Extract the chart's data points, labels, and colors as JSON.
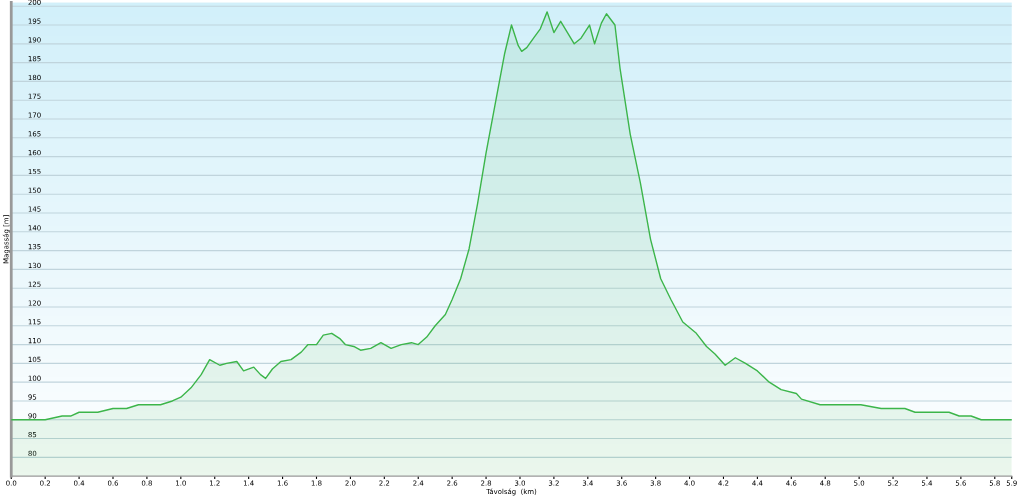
{
  "chart_data": {
    "type": "area",
    "xlabel": "Távolság  (km)",
    "ylabel": "Magasság [m]",
    "xlim": [
      0,
      5.9
    ],
    "ylim": [
      75,
      201
    ],
    "xticks": [
      {
        "value": 0,
        "label": "0.0"
      },
      0.2,
      0.4,
      0.6,
      0.8,
      {
        "value": 1,
        "label": "1.0"
      },
      1.2,
      1.4,
      1.6,
      1.8,
      {
        "value": 2,
        "label": "2.0"
      },
      2.2,
      2.4,
      2.6,
      2.8,
      {
        "value": 3,
        "label": "3.0"
      },
      3.2,
      3.4,
      3.6,
      3.8,
      {
        "value": 4,
        "label": "4.0"
      },
      4.2,
      4.4,
      4.6,
      4.8,
      {
        "value": 5,
        "label": "5.0"
      },
      5.2,
      5.4,
      5.6,
      5.8,
      5.9
    ],
    "yticks": [
      80,
      85,
      90,
      95,
      100,
      105,
      110,
      115,
      120,
      125,
      130,
      135,
      140,
      145,
      150,
      155,
      160,
      165,
      170,
      175,
      180,
      185,
      190,
      195,
      200
    ],
    "grid": "y",
    "legend": false,
    "series": [
      {
        "color": "#3cb54a",
        "x": [
          0,
          0.2,
          0.3,
          0.35,
          0.4,
          0.51,
          0.6,
          0.68,
          0.75,
          0.88,
          0.95,
          1.0,
          1.06,
          1.12,
          1.17,
          1.23,
          1.27,
          1.33,
          1.37,
          1.43,
          1.47,
          1.5,
          1.54,
          1.59,
          1.65,
          1.71,
          1.75,
          1.8,
          1.84,
          1.89,
          1.94,
          1.97,
          2.02,
          2.06,
          2.12,
          2.18,
          2.24,
          2.3,
          2.36,
          2.4,
          2.45,
          2.5,
          2.56,
          2.6,
          2.65,
          2.7,
          2.75,
          2.8,
          2.86,
          2.91,
          2.95,
          2.99,
          3.01,
          3.04,
          3.08,
          3.12,
          3.16,
          3.2,
          3.24,
          3.28,
          3.32,
          3.36,
          3.41,
          3.44,
          3.48,
          3.51,
          3.56,
          3.59,
          3.65,
          3.71,
          3.77,
          3.83,
          3.89,
          3.96,
          4.04,
          4.1,
          4.15,
          4.21,
          4.27,
          4.33,
          4.4,
          4.47,
          4.54,
          4.63,
          4.66,
          4.77,
          5.01,
          5.13,
          5.27,
          5.33,
          5.53,
          5.59,
          5.66,
          5.72,
          5.9
        ],
        "values": [
          90,
          90,
          91,
          91,
          92,
          92,
          93,
          93,
          94,
          94,
          95,
          96,
          98.5,
          102,
          106,
          104.5,
          105,
          105.5,
          103,
          104,
          102,
          101,
          103.5,
          105.5,
          106,
          108,
          110,
          110,
          112.5,
          113,
          111.5,
          110,
          109.5,
          108.5,
          109,
          110.5,
          109,
          110,
          110.5,
          110,
          112,
          115,
          118,
          122,
          127.5,
          135.5,
          147.5,
          161,
          175.5,
          187.5,
          195,
          189.5,
          188,
          189,
          191.5,
          194,
          198.5,
          193,
          196,
          193,
          190,
          191.5,
          195,
          190,
          195.5,
          198,
          195,
          183.5,
          166,
          153,
          138,
          127.5,
          122,
          116,
          113,
          109.5,
          107.5,
          104.5,
          106.5,
          105,
          103,
          100,
          98,
          97,
          95.5,
          94,
          94,
          93,
          93,
          92,
          92,
          91,
          91,
          90,
          90
        ]
      }
    ]
  }
}
